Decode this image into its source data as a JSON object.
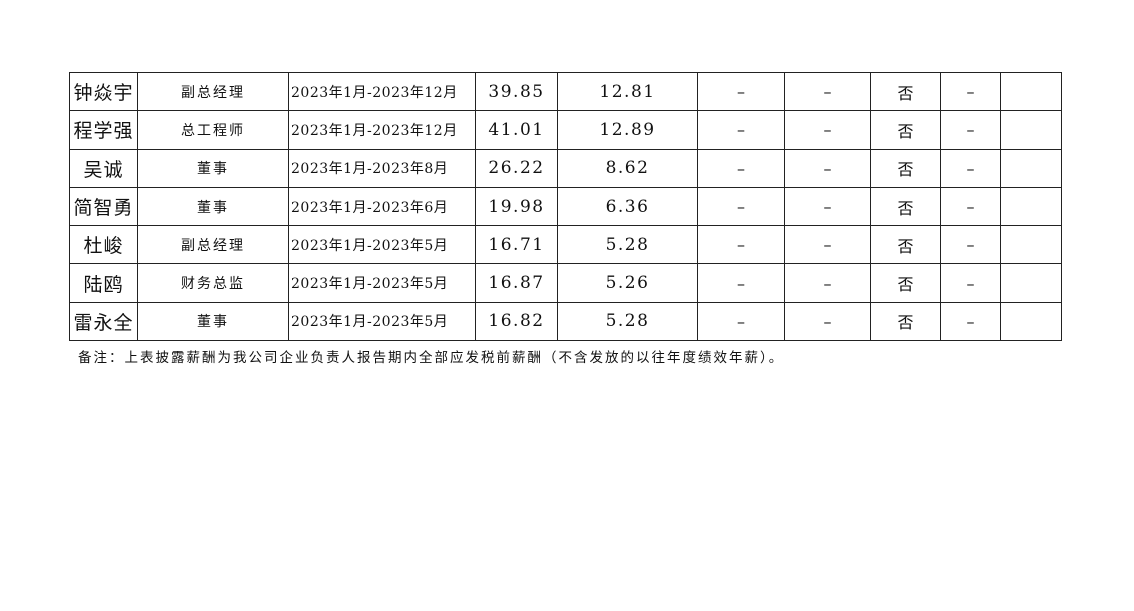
{
  "rows": [
    {
      "name": "钟焱宇",
      "position": "副总经理",
      "period": "2023年1月-2023年12月",
      "total": "39.85",
      "c5": "12.81",
      "c6": "–",
      "c7": "–",
      "c8": "否",
      "c9": "–",
      "c10": ""
    },
    {
      "name": "程学强",
      "position": "总工程师",
      "period": "2023年1月-2023年12月",
      "total": "41.01",
      "c5": "12.89",
      "c6": "–",
      "c7": "–",
      "c8": "否",
      "c9": "–",
      "c10": ""
    },
    {
      "name": "吴诚",
      "position": "董事",
      "period": "2023年1月-2023年8月",
      "total": "26.22",
      "c5": "8.62",
      "c6": "–",
      "c7": "–",
      "c8": "否",
      "c9": "–",
      "c10": ""
    },
    {
      "name": "简智勇",
      "position": "董事",
      "period": "2023年1月-2023年6月",
      "total": "19.98",
      "c5": "6.36",
      "c6": "–",
      "c7": "–",
      "c8": "否",
      "c9": "–",
      "c10": ""
    },
    {
      "name": "杜峻",
      "position": "副总经理",
      "period": "2023年1月-2023年5月",
      "total": "16.71",
      "c5": "5.28",
      "c6": "–",
      "c7": "–",
      "c8": "否",
      "c9": "–",
      "c10": ""
    },
    {
      "name": "陆鸥",
      "position": "财务总监",
      "period": "2023年1月-2023年5月",
      "total": "16.87",
      "c5": "5.26",
      "c6": "–",
      "c7": "–",
      "c8": "否",
      "c9": "–",
      "c10": ""
    },
    {
      "name": "雷永全",
      "position": "董事",
      "period": "2023年1月-2023年5月",
      "total": "16.82",
      "c5": "5.28",
      "c6": "–",
      "c7": "–",
      "c8": "否",
      "c9": "–",
      "c10": ""
    }
  ],
  "note": "备注：上表披露薪酬为我公司企业负责人报告期内全部应发税前薪酬（不含发放的以往年度绩效年薪）。"
}
